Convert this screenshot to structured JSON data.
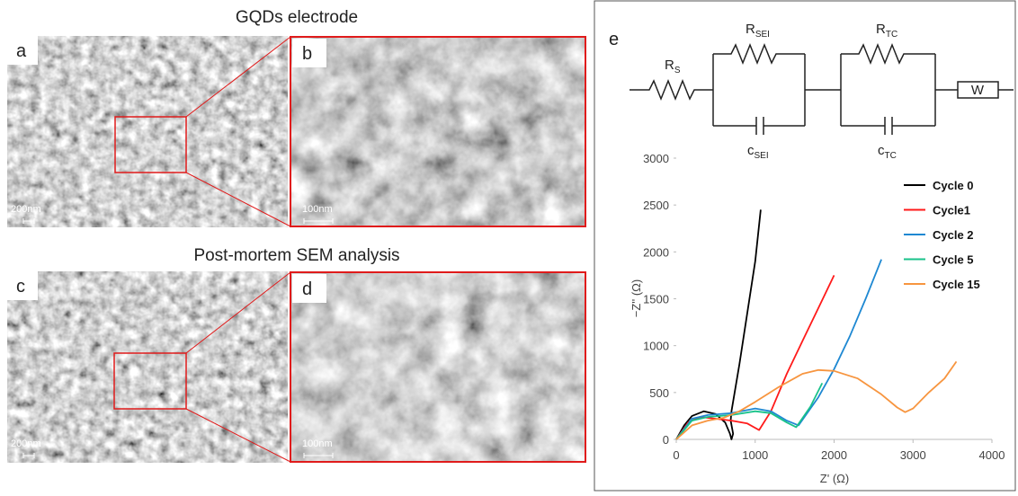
{
  "figure": {
    "title_top": "GQDs electrode",
    "title_bottom": "Post-mortem SEM analysis",
    "panels": [
      "a",
      "b",
      "c",
      "d",
      "e"
    ],
    "scale_a": "200nm",
    "scale_b": "100nm",
    "scale_c": "200nm",
    "scale_d": "100nm"
  },
  "circuit": {
    "rs": {
      "label": "R",
      "sub": "S"
    },
    "rsei": {
      "label": "R",
      "sub": "SEI"
    },
    "csei": {
      "label": "c",
      "sub": "SEI"
    },
    "rtc": {
      "label": "R",
      "sub": "TC"
    },
    "ctc": {
      "label": "c",
      "sub": "TC"
    },
    "w": "W"
  },
  "chart_data": {
    "type": "line",
    "xlabel": "Z' (Ω)",
    "ylabel": "−Z'' (Ω)",
    "xlim": [
      0,
      4000
    ],
    "xticks": [
      0,
      1000,
      2000,
      3000,
      4000
    ],
    "ylim": [
      0,
      3000
    ],
    "yticks": [
      0,
      500,
      1000,
      1500,
      2000,
      2500,
      3000
    ],
    "legend": "upper right",
    "series": [
      {
        "name": "Cycle 0",
        "color": "#000000",
        "x": [
          0,
          100,
          200,
          350,
          500,
          620,
          680,
          700,
          720,
          690,
          700,
          800,
          900,
          1000,
          1070
        ],
        "values": [
          0,
          150,
          250,
          300,
          270,
          180,
          60,
          0,
          60,
          200,
          300,
          800,
          1350,
          1900,
          2450
        ]
      },
      {
        "name": "Cycle1",
        "color": "#ff1a1a",
        "x": [
          0,
          150,
          300,
          500,
          700,
          900,
          1050,
          1200,
          1400,
          1600,
          1800,
          2000
        ],
        "values": [
          0,
          180,
          240,
          220,
          200,
          170,
          100,
          300,
          700,
          1050,
          1400,
          1750
        ]
      },
      {
        "name": "Cycle 2",
        "color": "#1e88d2",
        "x": [
          0,
          200,
          400,
          700,
          1000,
          1200,
          1400,
          1550,
          1800,
          2000,
          2200,
          2400,
          2600
        ],
        "values": [
          0,
          220,
          260,
          280,
          330,
          300,
          200,
          150,
          450,
          750,
          1100,
          1500,
          1920
        ]
      },
      {
        "name": "Cycle 5",
        "color": "#19c28a",
        "x": [
          0,
          200,
          400,
          700,
          1000,
          1200,
          1400,
          1520,
          1700,
          1850
        ],
        "values": [
          0,
          200,
          240,
          260,
          300,
          280,
          180,
          130,
          350,
          600
        ]
      },
      {
        "name": "Cycle 15",
        "color": "#f7953f",
        "x": [
          0,
          200,
          400,
          600,
          800,
          1000,
          1300,
          1600,
          1800,
          2000,
          2300,
          2600,
          2800,
          2900,
          3000,
          3200,
          3400,
          3550
        ],
        "values": [
          0,
          150,
          200,
          230,
          300,
          400,
          560,
          700,
          740,
          730,
          650,
          480,
          340,
          290,
          330,
          500,
          650,
          830
        ]
      }
    ]
  }
}
